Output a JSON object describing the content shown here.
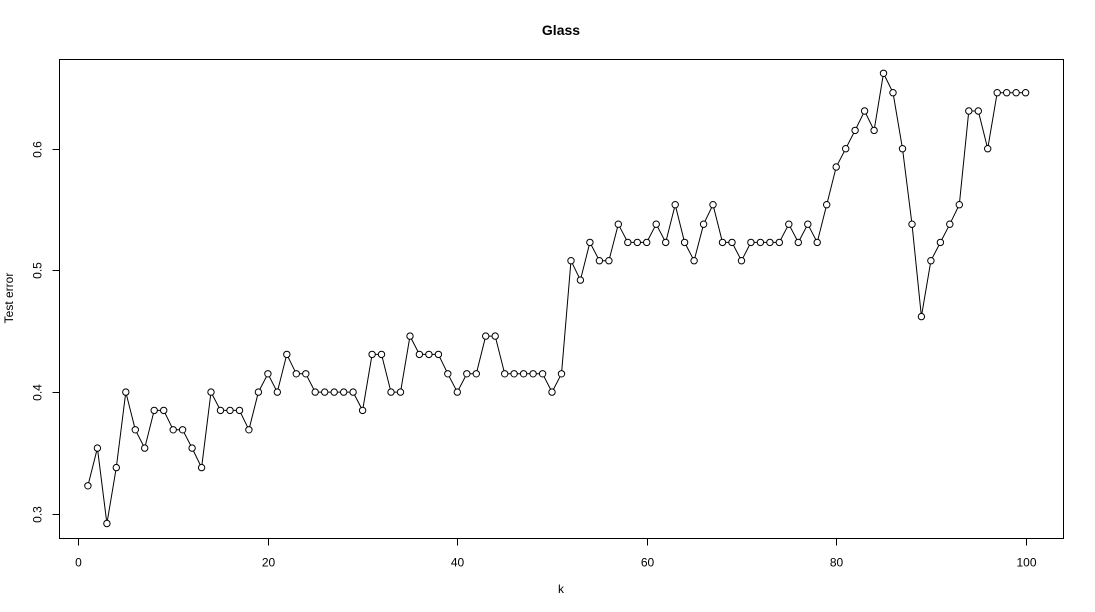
{
  "chart_data": {
    "type": "line",
    "title": "Glass",
    "xlabel": "k",
    "ylabel": "Test error",
    "xlim": [
      -2,
      104
    ],
    "ylim": [
      0.2797,
      0.6733
    ],
    "x_ticks": [
      0,
      20,
      40,
      60,
      80,
      100
    ],
    "y_ticks": [
      0.3,
      0.4,
      0.5,
      0.6
    ],
    "y_tick_labels": [
      "0.3",
      "0.4",
      "0.5",
      "0.6"
    ],
    "grid": false,
    "x": [
      1,
      2,
      3,
      4,
      5,
      6,
      7,
      8,
      9,
      10,
      11,
      12,
      13,
      14,
      15,
      16,
      17,
      18,
      19,
      20,
      21,
      22,
      23,
      24,
      25,
      26,
      27,
      28,
      29,
      30,
      31,
      32,
      33,
      34,
      35,
      36,
      37,
      38,
      39,
      40,
      41,
      42,
      43,
      44,
      45,
      46,
      47,
      48,
      49,
      50,
      51,
      52,
      53,
      54,
      55,
      56,
      57,
      58,
      59,
      60,
      61,
      62,
      63,
      64,
      65,
      66,
      67,
      68,
      69,
      70,
      71,
      72,
      73,
      74,
      75,
      76,
      77,
      78,
      79,
      80,
      81,
      82,
      83,
      84,
      85,
      86,
      87,
      88,
      89,
      90,
      91,
      92,
      93,
      94,
      95,
      96,
      97,
      98,
      99,
      100
    ],
    "values": [
      0.323,
      0.354,
      0.292,
      0.338,
      0.4,
      0.369,
      0.354,
      0.385,
      0.385,
      0.369,
      0.369,
      0.354,
      0.338,
      0.4,
      0.385,
      0.385,
      0.385,
      0.369,
      0.4,
      0.415,
      0.4,
      0.431,
      0.415,
      0.415,
      0.4,
      0.4,
      0.4,
      0.4,
      0.4,
      0.385,
      0.431,
      0.431,
      0.4,
      0.4,
      0.446,
      0.431,
      0.431,
      0.431,
      0.415,
      0.4,
      0.415,
      0.415,
      0.446,
      0.446,
      0.415,
      0.415,
      0.415,
      0.415,
      0.415,
      0.4,
      0.415,
      0.508,
      0.492,
      0.523,
      0.508,
      0.508,
      0.538,
      0.523,
      0.523,
      0.523,
      0.538,
      0.523,
      0.554,
      0.523,
      0.508,
      0.538,
      0.554,
      0.523,
      0.523,
      0.508,
      0.523,
      0.523,
      0.523,
      0.523,
      0.538,
      0.523,
      0.538,
      0.523,
      0.554,
      0.585,
      0.6,
      0.615,
      0.631,
      0.615,
      0.662,
      0.646,
      0.6,
      0.538,
      0.462,
      0.508,
      0.523,
      0.538,
      0.554,
      0.631,
      0.631,
      0.6,
      0.646,
      0.646,
      0.646,
      0.646
    ]
  }
}
